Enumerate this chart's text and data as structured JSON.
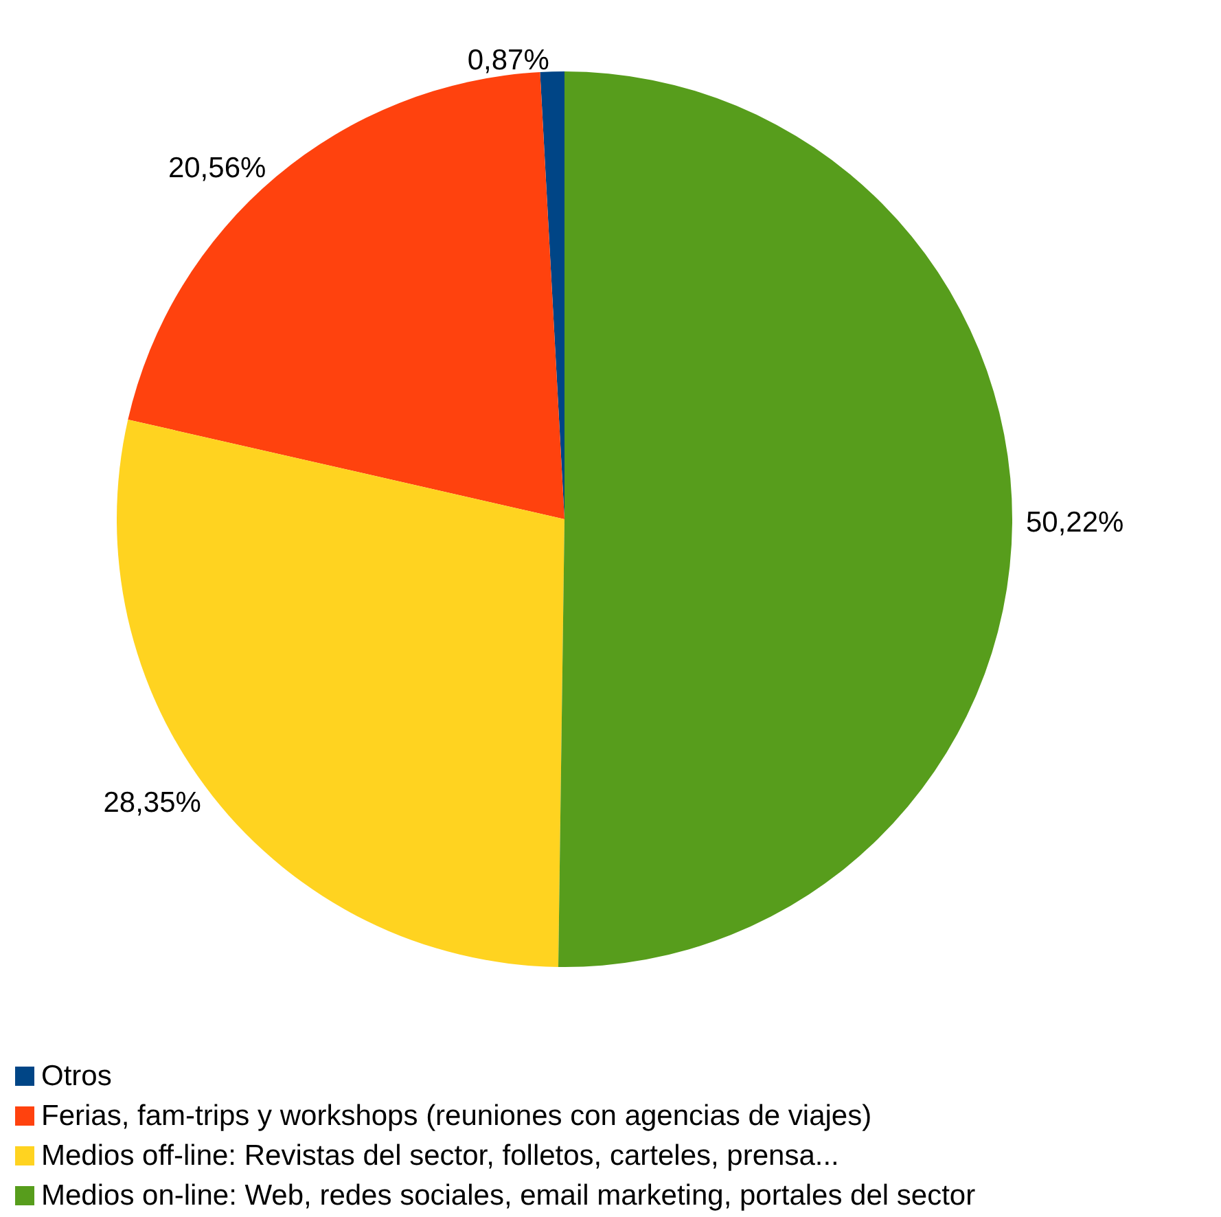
{
  "chart_data": {
    "type": "pie",
    "categories": [
      "Otros",
      "Ferias, fam-trips y workshops (reuniones con agencias de viajes)",
      "Medios off-line: Revistas del sector, folletos, carteles, prensa...",
      "Medios on-line: Web, redes sociales, email marketing, portales del sector"
    ],
    "values": [
      0.87,
      20.56,
      28.35,
      50.22
    ],
    "colors": [
      "#004586",
      "#ff420e",
      "#ffd320",
      "#579d1c"
    ],
    "value_labels": [
      "0,87%",
      "20,56%",
      "28,35%",
      "50,22%"
    ],
    "legend": "bottom left"
  }
}
